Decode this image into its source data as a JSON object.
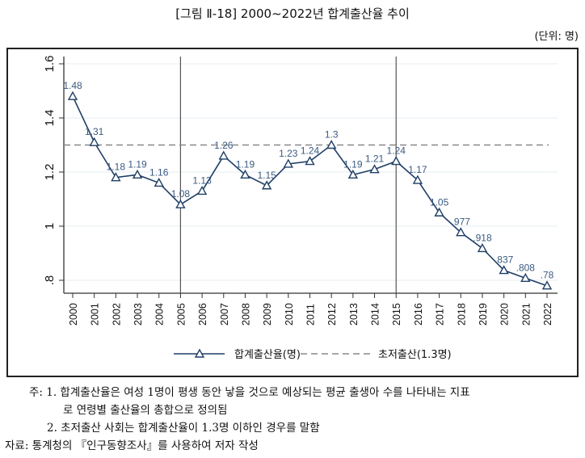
{
  "title": "[그림 Ⅱ-18] 2000~2022년 합계출산율 추이",
  "unit": "(단위: 명)",
  "chart_data": {
    "type": "line",
    "x": [
      2000,
      2001,
      2002,
      2003,
      2004,
      2005,
      2006,
      2007,
      2008,
      2009,
      2010,
      2011,
      2012,
      2013,
      2014,
      2015,
      2016,
      2017,
      2018,
      2019,
      2020,
      2021,
      2022
    ],
    "series": [
      {
        "name": "합계출산율(명)",
        "values": [
          1.48,
          1.31,
          1.18,
          1.19,
          1.16,
          1.08,
          1.13,
          1.26,
          1.19,
          1.15,
          1.23,
          1.24,
          1.3,
          1.19,
          1.21,
          1.24,
          1.17,
          1.05,
          0.977,
          0.918,
          0.837,
          0.808,
          0.78
        ],
        "labels": [
          "1.48",
          "1.31",
          "1.18",
          "1.19",
          "1.16",
          "1.08",
          "1.13",
          "1.26",
          "1.19",
          "1.15",
          "1.23",
          "1.24",
          "1.3",
          "1.19",
          "1.21",
          "1.24",
          "1.17",
          "1.05",
          ".977",
          ".918",
          ".837",
          ".808",
          ".78"
        ],
        "color": "#1f3f66",
        "marker": "triangle-hollow"
      },
      {
        "name": "초저출산(1.3명)",
        "type": "reference-line",
        "value": 1.3,
        "style": "dashed",
        "color": "#888888"
      }
    ],
    "vertical_lines": [
      2005,
      2015
    ],
    "yticks": [
      0.8,
      1.0,
      1.2,
      1.4,
      1.6
    ],
    "ytick_labels": [
      ".8",
      "1",
      "1.2",
      "1.4",
      "1.6"
    ],
    "ylim": [
      0.8,
      1.6
    ],
    "grid": "horizontal",
    "legend": "bottom"
  },
  "notes": {
    "note1_line1": "주: 1. 합계출산율은 여성 1명이 평생 동안 낳을 것으로 예상되는 평균 출생아 수를 나타내는 지표",
    "note1_line2": "로 연령별 출산율의 총합으로 정의됨",
    "note2": "2. 초저출산 사회는 합계출산율이 1.3명 이하인 경우를 말함",
    "source": "자료: 통계청의 『인구동향조사』를 사용하여 저자 작성"
  }
}
